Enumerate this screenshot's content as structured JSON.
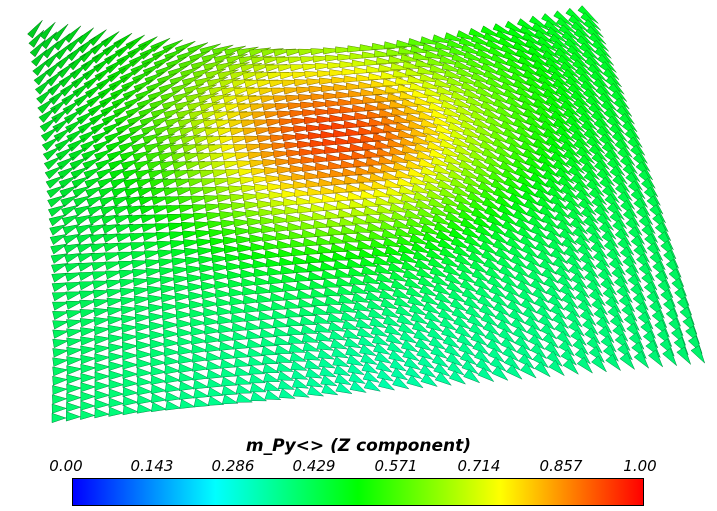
{
  "legend": {
    "title": "m_Py<> (Z component)",
    "ticks": [
      "0.00",
      "0.143",
      "0.286",
      "0.429",
      "0.571",
      "0.714",
      "0.857",
      "1.00"
    ],
    "range": [
      0,
      1
    ],
    "colormap": [
      "#0000ff",
      "#00ffff",
      "#00ff00",
      "#ffff00",
      "#ff0000"
    ]
  }
}
